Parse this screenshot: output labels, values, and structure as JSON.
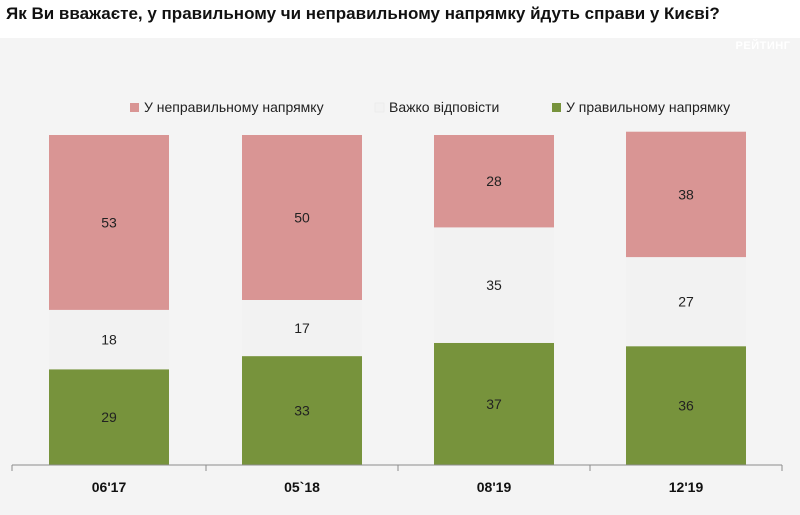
{
  "title": "Як Ви вважаєте, у правильному чи неправильному напрямку йдуть справи у Києві?",
  "watermark": "РЕЙТИНГ",
  "colors": {
    "wrong": "#d99594",
    "hard": "#f2f2f2",
    "right": "#77933c"
  },
  "chart_data": {
    "type": "bar",
    "stacked": true,
    "categories": [
      "06'17",
      "05`18",
      "08'19",
      "12'19"
    ],
    "series": [
      {
        "name": "У правильному напрямку",
        "values": [
          29,
          33,
          37,
          36
        ]
      },
      {
        "name": "Важко відповісти",
        "values": [
          18,
          17,
          35,
          27
        ]
      },
      {
        "name": "У неправильному напрямку",
        "values": [
          53,
          50,
          28,
          38
        ]
      }
    ],
    "ylim": [
      0,
      100
    ],
    "legend_order": [
      "У неправильному напрямку",
      "Важко відповісти",
      "У правильному напрямку"
    ],
    "legend_position": "top",
    "data_labels": true,
    "grid": false
  }
}
